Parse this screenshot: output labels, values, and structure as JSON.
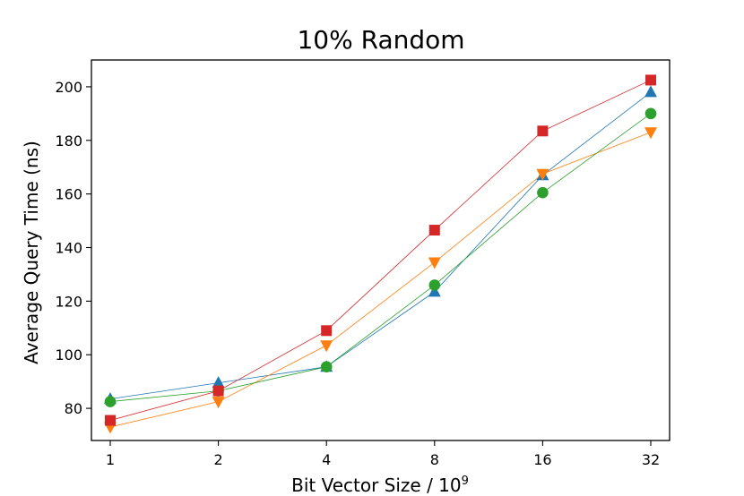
{
  "chart_data": {
    "type": "line",
    "title": "10% Random",
    "xlabel": "Bit Vector Size / 10",
    "xlabel_sup": "9",
    "ylabel": "Average Query Time (ns)",
    "x": [
      1,
      2,
      4,
      8,
      16,
      32
    ],
    "x_tick_labels": [
      "1",
      "2",
      "4",
      "8",
      "16",
      "32"
    ],
    "x_scale": "log2",
    "ylim": [
      68,
      210
    ],
    "y_ticks": [
      80,
      100,
      120,
      140,
      160,
      180,
      200
    ],
    "grid": false,
    "series": [
      {
        "marker": "triangle-up",
        "color": "#1f77b4",
        "values": [
          83.5,
          89.5,
          95.5,
          123.5,
          167,
          198
        ]
      },
      {
        "marker": "triangle-down",
        "color": "#ff7f0e",
        "values": [
          73,
          82.5,
          103.5,
          134.5,
          167.5,
          183
        ]
      },
      {
        "marker": "circle",
        "color": "#2ca02c",
        "values": [
          82.5,
          86.5,
          95.5,
          126,
          160.5,
          190
        ]
      },
      {
        "marker": "square",
        "color": "#d62728",
        "values": [
          75.5,
          86.5,
          109,
          146.5,
          183.5,
          202.5
        ]
      }
    ]
  }
}
